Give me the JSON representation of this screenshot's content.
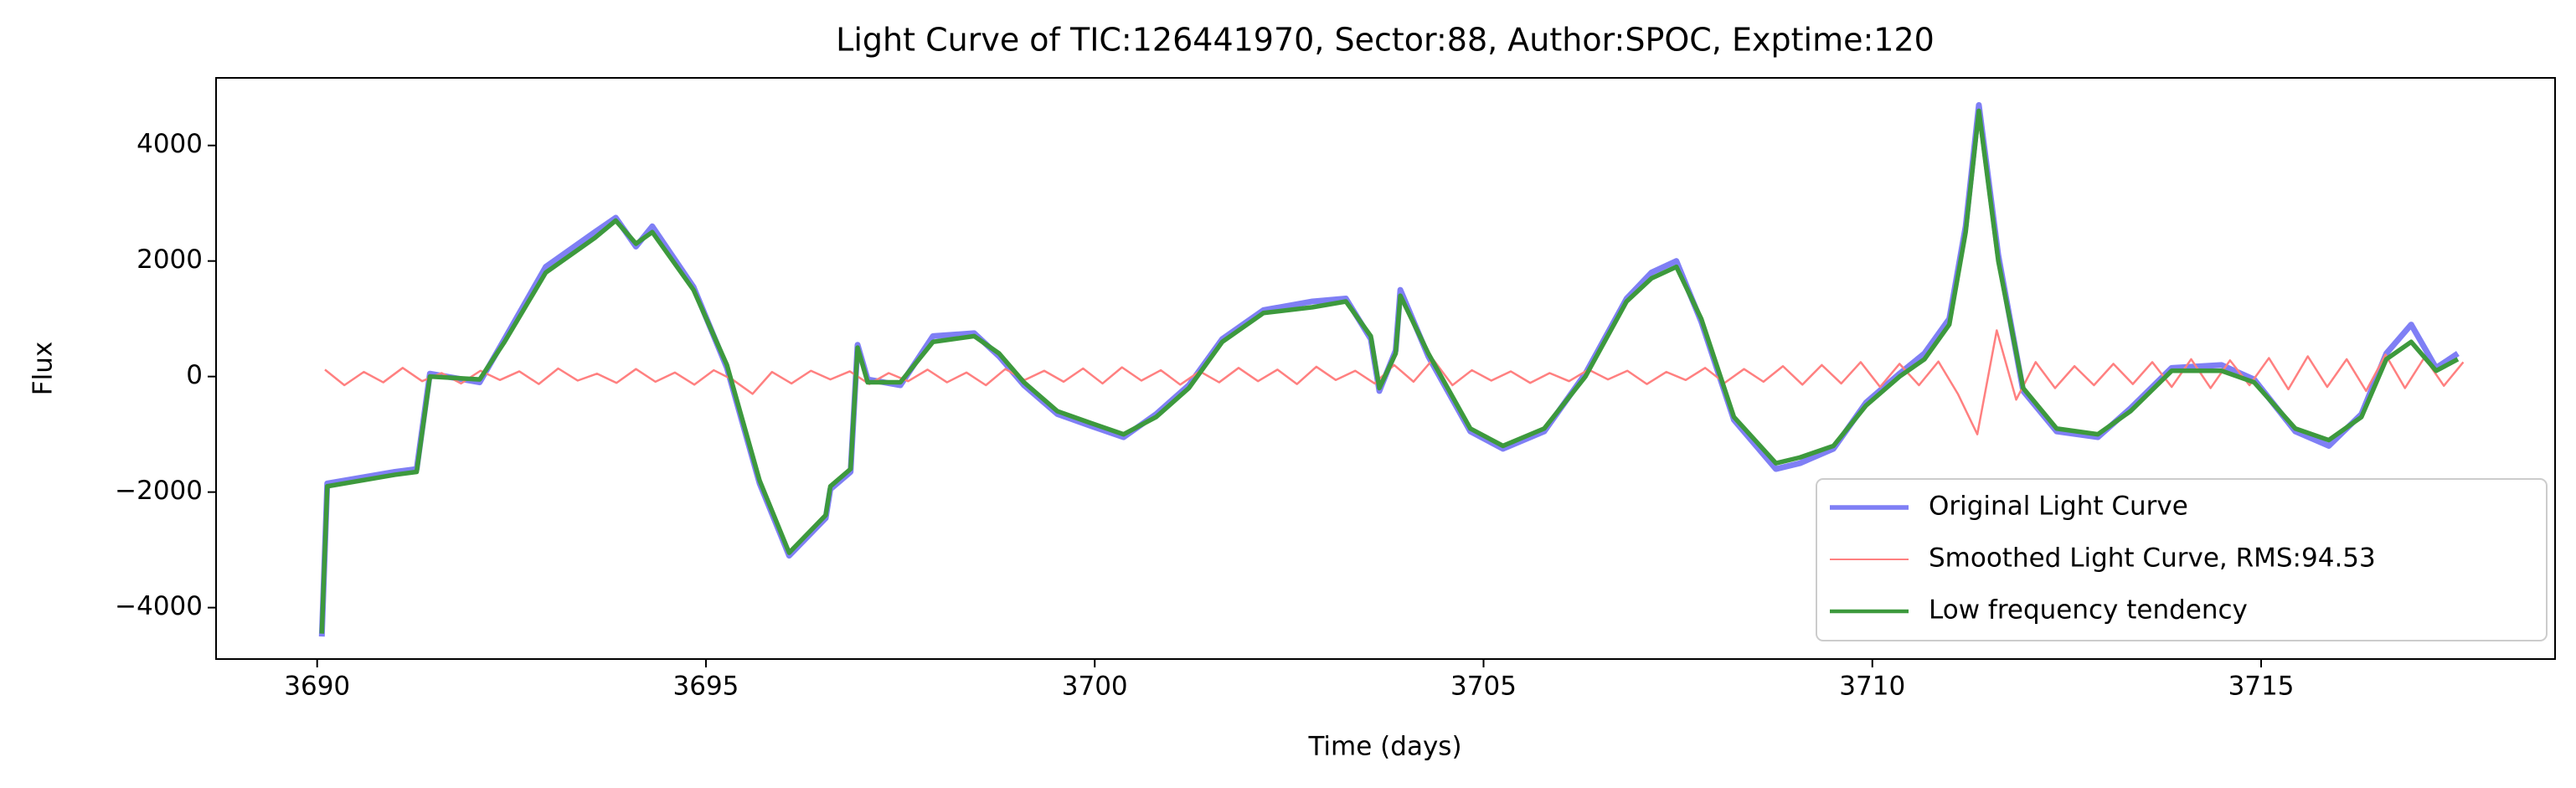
{
  "chart_data": {
    "type": "line",
    "title": "Light Curve of TIC:126441970, Sector:88, Author:SPOC, Exptime:120",
    "xlabel": "Time (days)",
    "ylabel": "Flux",
    "xlim": [
      3688.7,
      3718.78
    ],
    "ylim": [
      -4890,
      5170
    ],
    "xticks": [
      3690,
      3695,
      3700,
      3705,
      3710,
      3715
    ],
    "yticks": [
      {
        "value": -4000,
        "label": "−4000"
      },
      {
        "value": -2000,
        "label": "−2000"
      },
      0,
      2000,
      4000
    ],
    "grid": false,
    "legend": "lower right",
    "series": [
      {
        "name": "Original Light Curve",
        "color": "#7f7ff5",
        "x": [
          3690.06,
          3690.13,
          3691.0,
          3691.28,
          3691.45,
          3692.09,
          3692.41,
          3692.94,
          3693.57,
          3693.84,
          3694.1,
          3694.31,
          3694.84,
          3695.27,
          3695.69,
          3696.07,
          3696.54,
          3696.6,
          3696.86,
          3696.95,
          3697.08,
          3697.5,
          3697.92,
          3698.45,
          3698.77,
          3699.09,
          3699.52,
          3699.94,
          3700.37,
          3700.79,
          3701.21,
          3701.64,
          3702.17,
          3702.8,
          3703.23,
          3703.55,
          3703.66,
          3703.87,
          3703.93,
          3704.29,
          3704.83,
          3705.25,
          3705.78,
          3706.31,
          3706.84,
          3707.16,
          3707.48,
          3707.8,
          3708.22,
          3708.76,
          3709.07,
          3709.5,
          3709.92,
          3710.35,
          3710.67,
          3710.99,
          3711.2,
          3711.37,
          3711.62,
          3711.94,
          3712.37,
          3712.9,
          3713.32,
          3713.85,
          3714.49,
          3714.91,
          3715.44,
          3715.87,
          3716.29,
          3716.61,
          3716.93,
          3717.25,
          3717.53
        ],
        "values": [
          -4500,
          -1850,
          -1650,
          -1600,
          50,
          -100,
          650,
          1900,
          2500,
          2750,
          2250,
          2600,
          1550,
          150,
          -1850,
          -3100,
          -2450,
          -1950,
          -1650,
          550,
          -50,
          -150,
          700,
          750,
          350,
          -150,
          -650,
          -850,
          -1050,
          -650,
          -150,
          650,
          1150,
          1300,
          1350,
          650,
          -250,
          450,
          1500,
          350,
          -950,
          -1250,
          -950,
          50,
          1350,
          1800,
          2000,
          950,
          -750,
          -1600,
          -1500,
          -1250,
          -450,
          50,
          400,
          1000,
          2600,
          4700,
          2100,
          -250,
          -950,
          -1050,
          -550,
          150,
          200,
          -50,
          -950,
          -1200,
          -650,
          400,
          900,
          150,
          400
        ]
      },
      {
        "name": "Smoothed Light Curve, RMS:94.53",
        "color": "#ff8080",
        "x": [
          3690.1,
          3690.35,
          3690.6,
          3690.85,
          3691.1,
          3691.35,
          3691.6,
          3691.85,
          3692.1,
          3692.35,
          3692.6,
          3692.85,
          3693.1,
          3693.35,
          3693.6,
          3693.85,
          3694.1,
          3694.35,
          3694.6,
          3694.85,
          3695.1,
          3695.35,
          3695.6,
          3695.85,
          3696.1,
          3696.35,
          3696.6,
          3696.85,
          3697.1,
          3697.35,
          3697.6,
          3697.85,
          3698.1,
          3698.35,
          3698.6,
          3698.85,
          3699.1,
          3699.35,
          3699.6,
          3699.85,
          3700.1,
          3700.35,
          3700.6,
          3700.85,
          3701.1,
          3701.35,
          3701.6,
          3701.85,
          3702.1,
          3702.35,
          3702.6,
          3702.85,
          3703.1,
          3703.35,
          3703.6,
          3703.85,
          3704.1,
          3704.35,
          3704.6,
          3704.85,
          3705.1,
          3705.35,
          3705.6,
          3705.85,
          3706.1,
          3706.35,
          3706.6,
          3706.85,
          3707.1,
          3707.35,
          3707.6,
          3707.85,
          3708.1,
          3708.35,
          3708.6,
          3708.85,
          3709.1,
          3709.35,
          3709.6,
          3709.85,
          3710.1,
          3710.35,
          3710.6,
          3710.85,
          3711.1,
          3711.35,
          3711.6,
          3711.85,
          3712.1,
          3712.35,
          3712.6,
          3712.85,
          3713.1,
          3713.35,
          3713.6,
          3713.85,
          3714.1,
          3714.35,
          3714.6,
          3714.85,
          3715.1,
          3715.35,
          3715.6,
          3715.85,
          3716.1,
          3716.35,
          3716.6,
          3716.85,
          3717.1,
          3717.35,
          3717.6
        ],
        "values": [
          120,
          -150,
          80,
          -100,
          150,
          -80,
          60,
          -120,
          100,
          -60,
          90,
          -130,
          140,
          -70,
          50,
          -110,
          130,
          -90,
          70,
          -140,
          110,
          -60,
          -300,
          80,
          -120,
          100,
          -50,
          90,
          -130,
          60,
          -80,
          120,
          -100,
          70,
          -150,
          130,
          -60,
          100,
          -90,
          140,
          -120,
          160,
          -70,
          110,
          -140,
          90,
          -100,
          150,
          -80,
          120,
          -130,
          170,
          -60,
          100,
          -120,
          200,
          -90,
          300,
          -150,
          110,
          -70,
          90,
          -110,
          60,
          -80,
          120,
          -50,
          100,
          -130,
          80,
          -60,
          150,
          -110,
          130,
          -90,
          180,
          -140,
          200,
          -120,
          250,
          -180,
          220,
          -150,
          260,
          -300,
          -1000,
          800,
          -400,
          250,
          -200,
          180,
          -150,
          220,
          -130,
          250,
          -180,
          300,
          -200,
          280,
          -150,
          320,
          -220,
          350,
          -180,
          300,
          -250,
          380,
          -200,
          330,
          -160,
          250
        ]
      },
      {
        "name": "Low frequency tendency",
        "color": "#3d993d",
        "x": [
          3690.06,
          3690.13,
          3691.0,
          3691.28,
          3691.45,
          3692.09,
          3692.41,
          3692.94,
          3693.57,
          3693.84,
          3694.1,
          3694.31,
          3694.84,
          3695.27,
          3695.69,
          3696.07,
          3696.54,
          3696.6,
          3696.86,
          3696.95,
          3697.08,
          3697.5,
          3697.92,
          3698.45,
          3698.77,
          3699.09,
          3699.52,
          3699.94,
          3700.37,
          3700.79,
          3701.21,
          3701.64,
          3702.17,
          3702.8,
          3703.23,
          3703.55,
          3703.66,
          3703.87,
          3703.93,
          3704.29,
          3704.83,
          3705.25,
          3705.78,
          3706.31,
          3706.84,
          3707.16,
          3707.48,
          3707.8,
          3708.22,
          3708.76,
          3709.07,
          3709.5,
          3709.92,
          3710.35,
          3710.67,
          3710.99,
          3711.2,
          3711.37,
          3711.62,
          3711.94,
          3712.37,
          3712.9,
          3713.32,
          3713.85,
          3714.49,
          3714.91,
          3715.44,
          3715.87,
          3716.29,
          3716.61,
          3716.93,
          3717.25,
          3717.53
        ],
        "values": [
          -4450,
          -1900,
          -1700,
          -1650,
          0,
          -50,
          600,
          1800,
          2400,
          2700,
          2300,
          2500,
          1500,
          200,
          -1800,
          -3050,
          -2400,
          -1900,
          -1600,
          500,
          -100,
          -100,
          600,
          700,
          400,
          -100,
          -600,
          -800,
          -1000,
          -700,
          -200,
          600,
          1100,
          1200,
          1300,
          700,
          -200,
          400,
          1400,
          400,
          -900,
          -1200,
          -900,
          0,
          1300,
          1700,
          1900,
          1000,
          -700,
          -1500,
          -1400,
          -1200,
          -500,
          0,
          300,
          900,
          2500,
          4600,
          2000,
          -200,
          -900,
          -1000,
          -600,
          100,
          100,
          -100,
          -900,
          -1100,
          -700,
          300,
          600,
          100,
          300
        ]
      }
    ]
  }
}
